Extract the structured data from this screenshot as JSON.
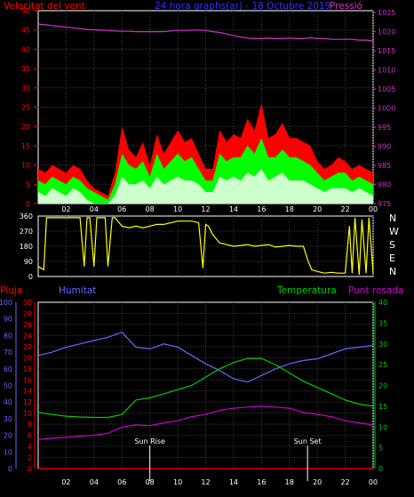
{
  "colors": {
    "wind": "#ff0000",
    "gust_fill": "#ff0000",
    "avg_fill": "#00ff00",
    "min_fill": "#ccffcc",
    "pressure": "#cc33cc",
    "direction": "#ffff00",
    "rain": "#ff0000",
    "humidity": "#6666ff",
    "temperature": "#00cc00",
    "dewpoint": "#cc00cc",
    "title": "#3333ff",
    "axis_white": "#ffffff"
  },
  "header": {
    "wind_label": "Velocitat del vent",
    "title": "24 hora graphs(ar) - 18 Octubre 2019",
    "pressure_label": "Pressió"
  },
  "direction_labels": [
    "N",
    "W",
    "S",
    "E",
    "N"
  ],
  "bottom_header": {
    "rain_label": "Pluja",
    "humidity_label": "Humitat",
    "temperature_label": "Temperatura",
    "dewpoint_label": "Punt rosada"
  },
  "sun": {
    "rise_label": "Sun Rise",
    "set_label": "Sun Set",
    "rise_hour": 8,
    "set_hour": 19.3
  },
  "chart_data": [
    {
      "type": "area",
      "name": "wind",
      "hour_ticks": [
        "02",
        "04",
        "06",
        "08",
        "10",
        "12",
        "14",
        "16",
        "18",
        "20",
        "22",
        "00"
      ],
      "x_hours": [
        0,
        0.5,
        1,
        1.5,
        2,
        2.5,
        3,
        3.5,
        4,
        4.5,
        5,
        5.5,
        6,
        6.5,
        7,
        7.5,
        8,
        8.5,
        9,
        9.5,
        10,
        10.5,
        11,
        11.5,
        12,
        12.5,
        13,
        13.5,
        14,
        14.5,
        15,
        15.5,
        16,
        16.5,
        17,
        17.5,
        18,
        18.5,
        19,
        19.5,
        20,
        20.5,
        21,
        21.5,
        22,
        22.5,
        23,
        23.5,
        24
      ],
      "gust": [
        9,
        8,
        10,
        9,
        8,
        10,
        9,
        6,
        4,
        3,
        2,
        8,
        20,
        14,
        12,
        16,
        10,
        18,
        13,
        16,
        19,
        16,
        17,
        13,
        9,
        9,
        19,
        16,
        18,
        17,
        22,
        19,
        26,
        17,
        18,
        21,
        17,
        17,
        16,
        15,
        11,
        9,
        10,
        12,
        11,
        9,
        10,
        9,
        8
      ],
      "avg": [
        6,
        5,
        7,
        6,
        5,
        7,
        6,
        4,
        3,
        2,
        1,
        5,
        13,
        10,
        9,
        11,
        7,
        13,
        9,
        11,
        13,
        11,
        12,
        9,
        6,
        6,
        13,
        11,
        12,
        12,
        15,
        13,
        17,
        12,
        12,
        14,
        12,
        12,
        11,
        10,
        8,
        6,
        7,
        8,
        8,
        6,
        7,
        6,
        5
      ],
      "min": [
        3,
        2,
        4,
        3,
        2,
        4,
        3,
        1,
        0,
        0,
        0,
        2,
        7,
        5,
        5,
        6,
        4,
        7,
        5,
        6,
        7,
        6,
        6,
        5,
        3,
        3,
        7,
        6,
        7,
        6,
        8,
        7,
        9,
        6,
        7,
        8,
        6,
        6,
        6,
        5,
        4,
        3,
        4,
        4,
        4,
        3,
        4,
        3,
        2
      ],
      "pressure": [
        1022,
        1021.8,
        1021.6,
        1021.4,
        1021.2,
        1021,
        1020.8,
        1020.6,
        1020.5,
        1020.4,
        1020.3,
        1020.2,
        1020.1,
        1020.1,
        1020,
        1020,
        1020,
        1020,
        1020,
        1020.2,
        1020.3,
        1020.3,
        1020.4,
        1020.4,
        1020.3,
        1020,
        1019.8,
        1019.4,
        1019,
        1018.6,
        1018.3,
        1018.2,
        1018.2,
        1018.3,
        1018.2,
        1018.2,
        1018.3,
        1018.2,
        1018.2,
        1018.4,
        1018.2,
        1018.2,
        1018,
        1018,
        1018,
        1018,
        1017.8,
        1017.8,
        1017.6
      ],
      "y_left_ticks": [
        0,
        5,
        10,
        15,
        20,
        25,
        30,
        35,
        40,
        45,
        50
      ],
      "y_left_lim": [
        0,
        50
      ],
      "y_right_ticks": [
        975,
        980,
        985,
        990,
        995,
        1000,
        1005,
        1010,
        1015,
        1020,
        1025
      ],
      "y_right_lim": [
        975,
        1025.5
      ]
    },
    {
      "type": "line",
      "name": "wind-direction",
      "y_ticks": [
        0,
        90,
        180,
        270,
        360
      ],
      "y_lim": [
        0,
        360
      ],
      "x_hours": [
        0,
        0.4,
        0.6,
        1.0,
        1.4,
        2.0,
        2.5,
        3.0,
        3.3,
        3.5,
        3.7,
        4.0,
        4.2,
        4.5,
        4.8,
        5.0,
        5.3,
        5.5,
        6.0,
        6.5,
        7.0,
        7.5,
        8.0,
        8.5,
        9.0,
        9.5,
        10.0,
        10.5,
        11.0,
        11.5,
        11.8,
        12.0,
        12.2,
        12.5,
        13.0,
        13.5,
        14.0,
        14.5,
        15.0,
        15.5,
        16.0,
        16.5,
        17.0,
        17.5,
        18.0,
        18.5,
        19.0,
        19.3,
        19.6,
        20.0,
        20.5,
        21.0,
        21.5,
        22.0,
        22.3,
        22.5,
        22.7,
        23.0,
        23.2,
        23.5,
        23.7,
        24.0
      ],
      "values": [
        60,
        40,
        350,
        350,
        350,
        350,
        350,
        350,
        60,
        350,
        350,
        60,
        350,
        350,
        350,
        60,
        350,
        350,
        300,
        290,
        300,
        290,
        300,
        310,
        310,
        320,
        330,
        330,
        330,
        320,
        50,
        310,
        300,
        250,
        200,
        190,
        180,
        185,
        190,
        180,
        185,
        190,
        175,
        180,
        185,
        180,
        180,
        100,
        40,
        30,
        20,
        25,
        20,
        20,
        300,
        20,
        350,
        10,
        340,
        20,
        350,
        20
      ]
    },
    {
      "type": "line",
      "name": "rain-humidity-temperature-dewpoint",
      "hour_ticks": [
        "02",
        "04",
        "06",
        "08",
        "10",
        "12",
        "14",
        "16",
        "18",
        "20",
        "22",
        "00"
      ],
      "x_hours": [
        0,
        1,
        2,
        3,
        4,
        5,
        6,
        7,
        8,
        9,
        10,
        11,
        12,
        13,
        14,
        15,
        16,
        17,
        18,
        19,
        20,
        21,
        22,
        23,
        24
      ],
      "humidity": [
        68,
        70,
        73,
        75,
        77,
        79,
        82,
        73,
        72,
        75,
        73,
        68,
        63,
        59,
        54,
        52,
        56,
        60,
        63,
        65,
        66,
        69,
        72,
        73,
        74
      ],
      "temperature": [
        13.5,
        13.0,
        12.6,
        12.4,
        12.3,
        12.3,
        13.0,
        16.5,
        17.0,
        18.0,
        19.0,
        20.0,
        22.0,
        24.0,
        25.5,
        26.5,
        26.5,
        25.0,
        23.0,
        21.0,
        19.5,
        18.0,
        16.5,
        15.5,
        15.0
      ],
      "dewpoint": [
        7.0,
        7.3,
        7.5,
        7.8,
        8.0,
        8.5,
        10.0,
        10.5,
        10.3,
        11.0,
        11.5,
        12.5,
        13.0,
        14.0,
        14.5,
        14.8,
        15.0,
        14.8,
        14.5,
        13.5,
        13.0,
        12.5,
        11.5,
        11.0,
        10.5
      ],
      "rain": [
        0,
        0,
        0,
        0,
        0,
        0,
        0,
        0,
        0,
        0,
        0,
        0,
        0,
        0,
        0,
        0,
        0,
        0,
        0,
        0,
        0,
        0,
        0,
        0,
        0
      ],
      "y_rain_ticks": [
        0,
        2,
        4,
        6,
        8,
        10,
        12,
        14,
        16,
        18,
        20,
        22,
        24,
        26,
        28,
        30
      ],
      "y_rain_lim": [
        0,
        30
      ],
      "y_humidity_ticks": [
        0,
        10,
        20,
        30,
        40,
        50,
        60,
        70,
        80,
        90,
        100
      ],
      "y_humidity_lim": [
        0,
        100
      ],
      "y_temp_ticks": [
        0,
        5,
        10,
        15,
        20,
        25,
        30,
        35,
        40
      ],
      "y_temp_lim": [
        0,
        40
      ]
    }
  ]
}
